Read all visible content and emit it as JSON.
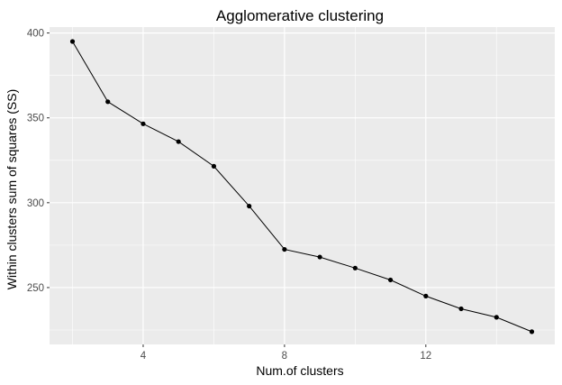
{
  "chart_data": {
    "type": "line",
    "title": "Agglomerative clustering",
    "xlabel": "Num.of clusters",
    "ylabel": "Within clusters sum of squares (SS)",
    "x": [
      2,
      3,
      4,
      5,
      6,
      7,
      8,
      9,
      10,
      11,
      12,
      13,
      14,
      15
    ],
    "series": [
      {
        "values": [
          395,
          359.5,
          346.5,
          336,
          321.5,
          298,
          272.5,
          268,
          261.5,
          254.5,
          245,
          237.5,
          232.5,
          224
        ]
      }
    ],
    "xlim": [
      1.35,
      15.65
    ],
    "ylim": [
      216.5,
      403.5
    ],
    "xticks": [
      4,
      8,
      12
    ],
    "yticks": [
      250,
      300,
      350,
      400
    ],
    "xtick_labels": [
      "4",
      "8",
      "12"
    ],
    "ytick_labels": [
      "250",
      "300",
      "350",
      "400"
    ],
    "grid": true,
    "legend": "none",
    "colors": {
      "panel": "#ebebeb",
      "grid": "#ffffff",
      "line": "#000000",
      "point": "#000000"
    }
  }
}
